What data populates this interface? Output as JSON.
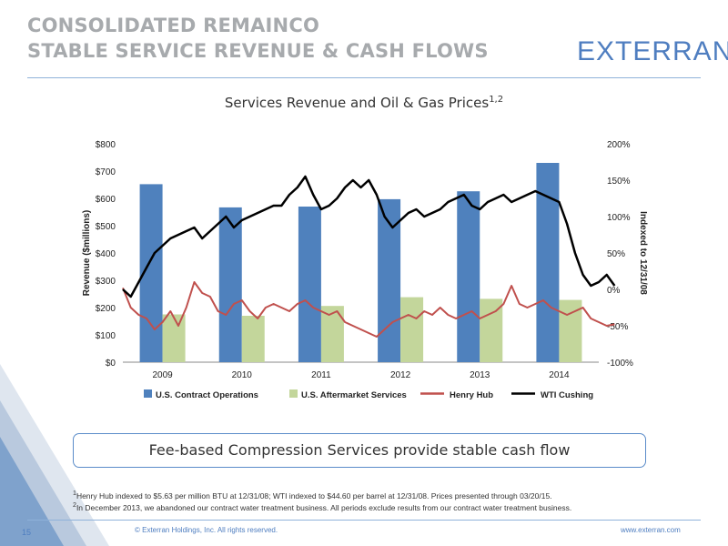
{
  "header": {
    "title_line1": "CONSOLIDATED REMAINCO",
    "title_line2": "STABLE SERVICE REVENUE & CASH FLOWS",
    "logo": "EXTERRAN",
    "logo_mark": "®"
  },
  "chart_title_text": "Services Revenue and Oil & Gas Prices",
  "chart_title_sup": "1,2",
  "chart_data": {
    "type": "bar",
    "title": "Services Revenue and Oil & Gas Prices",
    "categories": [
      "2009",
      "2010",
      "2011",
      "2012",
      "2013",
      "2014"
    ],
    "ylabel": "Revenue ($millions)",
    "y2label": "Indexed to 12/31/08",
    "ylim": [
      0,
      800
    ],
    "y2lim": [
      -100,
      200
    ],
    "y_ticks": [
      "$0",
      "$100",
      "$200",
      "$300",
      "$400",
      "$500",
      "$600",
      "$700",
      "$800"
    ],
    "y2_ticks": [
      "-100%",
      "-50%",
      "0%",
      "50%",
      "100%",
      "150%",
      "200%"
    ],
    "legend_position": "bottom",
    "colors": {
      "contract": "#4f81bd",
      "aftermarket": "#c3d69b",
      "henry": "#c0504d",
      "wti": "#000000"
    },
    "series": [
      {
        "name": "U.S. Contract Operations",
        "values": [
          652,
          567,
          570,
          597,
          626,
          730
        ]
      },
      {
        "name": "U.S. Aftermarket Services",
        "values": [
          175,
          170,
          206,
          238,
          232,
          228
        ]
      }
    ],
    "line_series": [
      {
        "name": "Henry Hub",
        "x": [
          2009.0,
          2009.1,
          2009.2,
          2009.3,
          2009.4,
          2009.5,
          2009.6,
          2009.7,
          2009.8,
          2009.9,
          2010.0,
          2010.1,
          2010.2,
          2010.3,
          2010.4,
          2010.5,
          2010.6,
          2010.7,
          2010.8,
          2010.9,
          2011.0,
          2011.1,
          2011.2,
          2011.3,
          2011.4,
          2011.5,
          2011.6,
          2011.7,
          2011.8,
          2011.9,
          2012.0,
          2012.1,
          2012.2,
          2012.3,
          2012.4,
          2012.5,
          2012.6,
          2012.7,
          2012.8,
          2012.9,
          2013.0,
          2013.1,
          2013.2,
          2013.3,
          2013.4,
          2013.5,
          2013.6,
          2013.7,
          2013.8,
          2013.9,
          2014.0,
          2014.1,
          2014.2,
          2014.3,
          2014.4,
          2014.5,
          2014.6,
          2014.7,
          2014.8,
          2014.9,
          2015.0,
          2015.1,
          2015.2
        ],
        "values": [
          2,
          -25,
          -35,
          -40,
          -55,
          -45,
          -30,
          -50,
          -25,
          10,
          -5,
          -10,
          -30,
          -35,
          -20,
          -15,
          -30,
          -40,
          -25,
          -20,
          -25,
          -30,
          -20,
          -15,
          -25,
          -30,
          -35,
          -30,
          -45,
          -50,
          -55,
          -60,
          -65,
          -55,
          -45,
          -40,
          -35,
          -40,
          -30,
          -35,
          -25,
          -35,
          -40,
          -35,
          -30,
          -40,
          -35,
          -30,
          -20,
          5,
          -20,
          -25,
          -20,
          -15,
          -25,
          -30,
          -35,
          -30,
          -25,
          -40,
          -45,
          -50,
          -48
        ]
      },
      {
        "name": "WTI Cushing",
        "x": [
          2009.0,
          2009.1,
          2009.2,
          2009.3,
          2009.4,
          2009.5,
          2009.6,
          2009.7,
          2009.8,
          2009.9,
          2010.0,
          2010.1,
          2010.2,
          2010.3,
          2010.4,
          2010.5,
          2010.6,
          2010.7,
          2010.8,
          2010.9,
          2011.0,
          2011.1,
          2011.2,
          2011.3,
          2011.4,
          2011.5,
          2011.6,
          2011.7,
          2011.8,
          2011.9,
          2012.0,
          2012.1,
          2012.2,
          2012.3,
          2012.4,
          2012.5,
          2012.6,
          2012.7,
          2012.8,
          2012.9,
          2013.0,
          2013.1,
          2013.2,
          2013.3,
          2013.4,
          2013.5,
          2013.6,
          2013.7,
          2013.8,
          2013.9,
          2014.0,
          2014.1,
          2014.2,
          2014.3,
          2014.4,
          2014.5,
          2014.6,
          2014.7,
          2014.8,
          2014.9,
          2015.0,
          2015.1,
          2015.2
        ],
        "values": [
          0,
          -10,
          10,
          30,
          50,
          60,
          70,
          75,
          80,
          85,
          70,
          80,
          90,
          100,
          85,
          95,
          100,
          105,
          110,
          115,
          115,
          130,
          140,
          155,
          130,
          110,
          115,
          125,
          140,
          150,
          140,
          150,
          130,
          100,
          85,
          95,
          105,
          110,
          100,
          105,
          110,
          120,
          125,
          130,
          115,
          110,
          120,
          125,
          130,
          120,
          125,
          130,
          135,
          130,
          125,
          120,
          90,
          50,
          20,
          5,
          10,
          20,
          5
        ]
      }
    ]
  },
  "callout": "Fee-based Compression Services provide stable cash flow",
  "footnotes": [
    {
      "num": "1",
      "text": "Henry Hub indexed to $5.63 per million BTU at 12/31/08; WTI indexed to $44.60 per barrel at 12/31/08. Prices presented through 03/20/15."
    },
    {
      "num": "2",
      "text": "In December 2013, we abandoned our contract water treatment business. All periods exclude results from our contract water treatment business."
    }
  ],
  "footer": {
    "copyright": "© Exterran Holdings, Inc. All rights reserved.",
    "url": "www.exterran.com",
    "page_number": "15"
  }
}
